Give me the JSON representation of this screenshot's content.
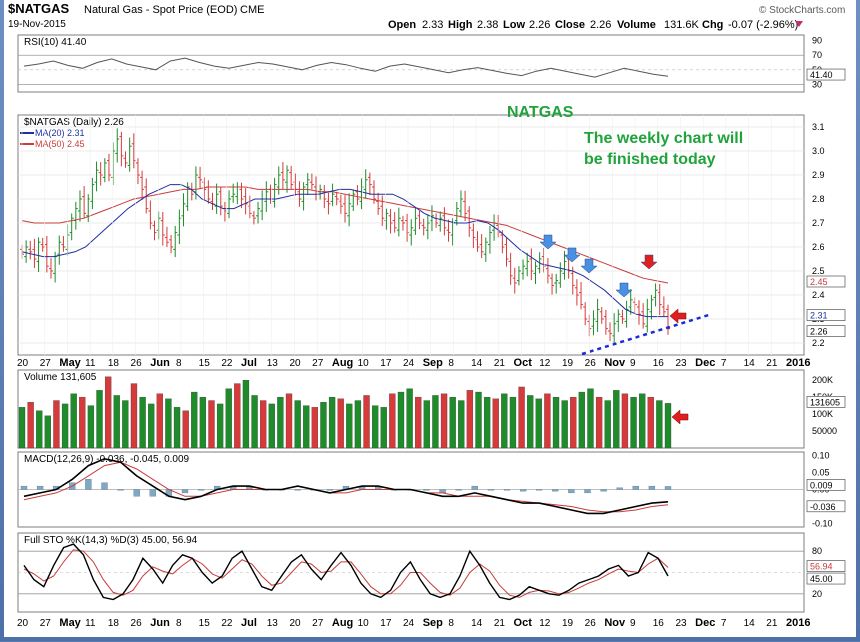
{
  "header": {
    "symbol": "$NATGAS",
    "name": "Natural Gas - Spot Price (EOD)",
    "exchange": "CME",
    "watermark": "© StockCharts.com",
    "date": "19-Nov-2015",
    "quote_labels": [
      "Open",
      "High",
      "Low",
      "Close",
      "Volume",
      "Chg"
    ],
    "quote_values": [
      "2.33",
      "2.38",
      "2.26",
      "2.26",
      "131.6K",
      "-0.07 (-2.96%)"
    ],
    "chg_direction": "down"
  },
  "annotations": {
    "natgas_label": "NATGAS",
    "note_line1": "The weekly chart will",
    "note_line2": "be finished today"
  },
  "x_axis": {
    "labels": [
      "20",
      "27",
      "May",
      "11",
      "18",
      "26",
      "Jun",
      "8",
      "15",
      "22",
      "Jul",
      "13",
      "20",
      "27",
      "Aug",
      "10",
      "17",
      "24",
      "Sep",
      "8",
      "14",
      "21",
      "Oct",
      "12",
      "19",
      "26",
      "Nov",
      "9",
      "16",
      "23",
      "Dec",
      "7",
      "14",
      "21",
      "2016"
    ],
    "bold": [
      "May",
      "Jun",
      "Jul",
      "Aug",
      "Sep",
      "Oct",
      "Nov",
      "Dec",
      "2016"
    ]
  },
  "colors": {
    "up": "#1e8c2a",
    "down": "#d63a3a",
    "ma20": "#1f2fa0",
    "ma50": "#c83c3c",
    "annotation_green": "#1fa33a",
    "arrow_blue": "#4a90e2",
    "arrow_red": "#e02020",
    "trendline": "#1a2bd8"
  },
  "chart_data": [
    {
      "type": "line",
      "panel": "rsi",
      "title": "RSI(10) 41.40",
      "y_ticks": [
        30,
        50,
        70,
        90
      ],
      "value_badge": "41.40",
      "series": [
        {
          "name": "RSI(10)",
          "values": [
            55,
            58,
            62,
            56,
            52,
            60,
            65,
            58,
            54,
            50,
            62,
            66,
            60,
            55,
            52,
            56,
            60,
            58,
            54,
            50,
            56,
            60,
            57,
            52,
            48,
            55,
            58,
            54,
            50,
            46,
            50,
            53,
            49,
            45,
            42,
            48,
            52,
            48,
            44,
            40,
            46,
            52,
            48,
            44,
            41
          ]
        }
      ]
    },
    {
      "type": "candlestick",
      "panel": "price",
      "title": "$NATGAS (Daily) 2.26",
      "legend": [
        "MA(20) 2.31",
        "MA(50) 2.45"
      ],
      "y_ticks": [
        2.2,
        2.3,
        2.4,
        2.5,
        2.6,
        2.7,
        2.8,
        2.9,
        3.0,
        3.1
      ],
      "ylim": [
        2.15,
        3.15
      ],
      "badges": [
        "2.45",
        "2.31",
        "2.26"
      ],
      "close": [
        2.57,
        2.6,
        2.58,
        2.55,
        2.62,
        2.6,
        2.52,
        2.5,
        2.56,
        2.62,
        2.6,
        2.65,
        2.72,
        2.76,
        2.8,
        2.74,
        2.8,
        2.86,
        2.92,
        2.9,
        2.95,
        2.9,
        3.0,
        3.05,
        2.98,
        2.95,
        3.02,
        2.96,
        2.9,
        2.84,
        2.76,
        2.7,
        2.66,
        2.72,
        2.65,
        2.62,
        2.6,
        2.66,
        2.72,
        2.78,
        2.85,
        2.82,
        2.9,
        2.88,
        2.84,
        2.8,
        2.78,
        2.82,
        2.77,
        2.75,
        2.8,
        2.82,
        2.85,
        2.8,
        2.78,
        2.74,
        2.72,
        2.76,
        2.8,
        2.83,
        2.8,
        2.86,
        2.9,
        2.88,
        2.92,
        2.86,
        2.84,
        2.8,
        2.85,
        2.88,
        2.86,
        2.82,
        2.84,
        2.8,
        2.78,
        2.82,
        2.8,
        2.77,
        2.74,
        2.78,
        2.82,
        2.8,
        2.85,
        2.88,
        2.86,
        2.8,
        2.76,
        2.72,
        2.74,
        2.7,
        2.68,
        2.72,
        2.7,
        2.66,
        2.68,
        2.72,
        2.7,
        2.68,
        2.7,
        2.73,
        2.7,
        2.72,
        2.68,
        2.66,
        2.7,
        2.76,
        2.8,
        2.74,
        2.68,
        2.64,
        2.6,
        2.58,
        2.62,
        2.66,
        2.7,
        2.66,
        2.6,
        2.55,
        2.48,
        2.45,
        2.5,
        2.52,
        2.54,
        2.5,
        2.52,
        2.55,
        2.52,
        2.48,
        2.44,
        2.46,
        2.5,
        2.54,
        2.5,
        2.44,
        2.4,
        2.36,
        2.3,
        2.26,
        2.3,
        2.34,
        2.3,
        2.26,
        2.24,
        2.28,
        2.32,
        2.3,
        2.34,
        2.38,
        2.36,
        2.32,
        2.28,
        2.34,
        2.38,
        2.42,
        2.36,
        2.33,
        2.26
      ],
      "series": [
        {
          "name": "MA(20)",
          "values": [
            2.58,
            2.57,
            2.56,
            2.56,
            2.57,
            2.58,
            2.6,
            2.64,
            2.68,
            2.72,
            2.76,
            2.79,
            2.82,
            2.84,
            2.86,
            2.86,
            2.84,
            2.8,
            2.78,
            2.76,
            2.76,
            2.78,
            2.8,
            2.8,
            2.8,
            2.81,
            2.82,
            2.82,
            2.82,
            2.83,
            2.84,
            2.84,
            2.83,
            2.82,
            2.82,
            2.82,
            2.8,
            2.77,
            2.74,
            2.72,
            2.71,
            2.7,
            2.7,
            2.71,
            2.7,
            2.67,
            2.63,
            2.59,
            2.56,
            2.53,
            2.52,
            2.51,
            2.5,
            2.48,
            2.45,
            2.42,
            2.38,
            2.34,
            2.32,
            2.31,
            2.31,
            2.31
          ]
        },
        {
          "name": "MA(50)",
          "values": [
            2.71,
            2.7,
            2.7,
            2.7,
            2.71,
            2.72,
            2.74,
            2.76,
            2.78,
            2.8,
            2.81,
            2.82,
            2.83,
            2.84,
            2.84,
            2.85,
            2.85,
            2.85,
            2.85,
            2.84,
            2.84,
            2.84,
            2.84,
            2.84,
            2.83,
            2.83,
            2.82,
            2.81,
            2.8,
            2.79,
            2.78,
            2.77,
            2.76,
            2.75,
            2.74,
            2.73,
            2.72,
            2.71,
            2.7,
            2.69,
            2.67,
            2.65,
            2.63,
            2.61,
            2.59,
            2.57,
            2.55,
            2.53,
            2.51,
            2.49,
            2.47,
            2.46,
            2.45
          ]
        }
      ]
    },
    {
      "type": "bar",
      "panel": "volume",
      "title": "Volume 131,605",
      "y_ticks": [
        "200K",
        "150K",
        "100K",
        "50000"
      ],
      "value_badge": "131605",
      "values": [
        120,
        135,
        110,
        95,
        140,
        130,
        160,
        150,
        125,
        170,
        210,
        155,
        140,
        190,
        150,
        130,
        160,
        145,
        120,
        110,
        165,
        150,
        140,
        130,
        175,
        190,
        200,
        155,
        140,
        130,
        150,
        160,
        140,
        125,
        120,
        135,
        150,
        145,
        130,
        140,
        155,
        125,
        120,
        160,
        165,
        175,
        150,
        140,
        155,
        160,
        150,
        140,
        170,
        165,
        150,
        145,
        160,
        150,
        180,
        155,
        145,
        160,
        150,
        140,
        150,
        165,
        175,
        150,
        140,
        170,
        160,
        150,
        160,
        150,
        140,
        131.6
      ]
    },
    {
      "type": "line",
      "panel": "macd",
      "title": "MACD(12,26,9) -0.036, -0.045, 0.009",
      "y_ticks": [
        0.1,
        0.05,
        0.0,
        -0.05,
        -0.1
      ],
      "badges": [
        "0.009",
        "-0.036"
      ],
      "series": [
        {
          "name": "MACD",
          "values": [
            -0.02,
            -0.01,
            0.0,
            0.03,
            0.07,
            0.09,
            0.08,
            0.04,
            0.01,
            -0.02,
            -0.03,
            -0.02,
            0.0,
            0.01,
            0.01,
            0.0,
            0.0,
            0.01,
            0.0,
            -0.01,
            0.0,
            0.01,
            0.01,
            0.0,
            0.0,
            -0.01,
            -0.02,
            -0.02,
            -0.01,
            -0.02,
            -0.03,
            -0.04,
            -0.04,
            -0.05,
            -0.06,
            -0.07,
            -0.07,
            -0.06,
            -0.05,
            -0.04,
            -0.036
          ]
        },
        {
          "name": "Signal",
          "values": [
            -0.03,
            -0.02,
            -0.01,
            0.01,
            0.04,
            0.07,
            0.08,
            0.06,
            0.03,
            0.0,
            -0.02,
            -0.02,
            -0.01,
            0.0,
            0.0,
            0.0,
            0.0,
            0.01,
            0.0,
            -0.01,
            -0.01,
            0.0,
            0.0,
            0.0,
            0.0,
            -0.01,
            -0.01,
            -0.02,
            -0.02,
            -0.02,
            -0.03,
            -0.035,
            -0.04,
            -0.045,
            -0.05,
            -0.06,
            -0.065,
            -0.065,
            -0.06,
            -0.05,
            -0.045
          ]
        },
        {
          "name": "Histogram",
          "values": [
            0.01,
            0.01,
            0.01,
            0.02,
            0.03,
            0.02,
            0.0,
            -0.02,
            -0.02,
            -0.02,
            -0.01,
            0.0,
            0.01,
            0.01,
            0.01,
            0.0,
            0.0,
            0.0,
            0.0,
            0.0,
            0.01,
            0.01,
            0.01,
            0.0,
            0.0,
            0.0,
            -0.01,
            0.0,
            0.01,
            0.0,
            0.0,
            -0.005,
            0.0,
            -0.005,
            -0.01,
            -0.01,
            -0.005,
            0.005,
            0.01,
            0.01,
            0.009
          ]
        }
      ]
    },
    {
      "type": "line",
      "panel": "stochastic",
      "title": "Full STO %K(14,3) %D(3) 45.00, 56.94",
      "y_ticks": [
        80,
        20
      ],
      "badges": [
        "56.94",
        "45.00"
      ],
      "series": [
        {
          "name": "%K",
          "values": [
            60,
            40,
            30,
            60,
            85,
            90,
            75,
            40,
            15,
            12,
            20,
            40,
            70,
            55,
            35,
            60,
            75,
            70,
            50,
            35,
            45,
            70,
            80,
            55,
            30,
            25,
            45,
            65,
            75,
            55,
            40,
            60,
            78,
            60,
            35,
            20,
            15,
            25,
            50,
            65,
            40,
            20,
            15,
            20,
            45,
            80,
            60,
            35,
            15,
            12,
            18,
            30,
            25,
            20,
            18,
            25,
            35,
            40,
            45,
            55,
            60,
            45,
            50,
            78,
            70,
            45
          ]
        },
        {
          "name": "%D",
          "values": [
            55,
            48,
            38,
            45,
            65,
            82,
            80,
            65,
            40,
            22,
            18,
            25,
            45,
            58,
            52,
            48,
            60,
            70,
            62,
            48,
            42,
            55,
            68,
            62,
            45,
            32,
            35,
            50,
            65,
            62,
            50,
            52,
            65,
            65,
            48,
            30,
            20,
            20,
            32,
            50,
            50,
            35,
            22,
            18,
            28,
            50,
            62,
            52,
            32,
            18,
            15,
            22,
            25,
            24,
            20,
            22,
            28,
            35,
            40,
            48,
            55,
            52,
            50,
            62,
            70,
            57
          ]
        }
      ]
    }
  ]
}
